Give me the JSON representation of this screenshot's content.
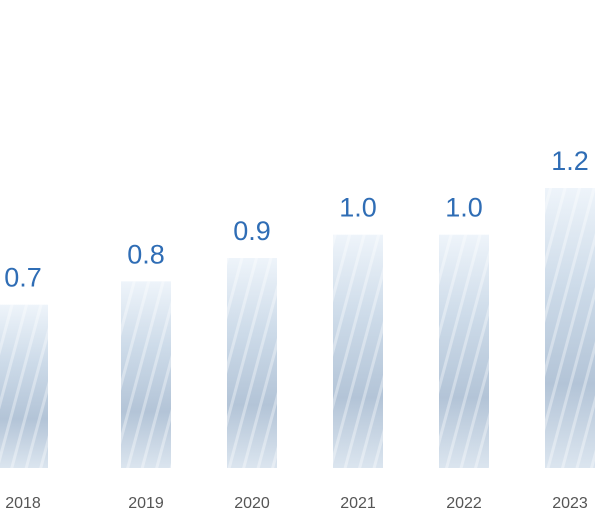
{
  "chart_data": {
    "type": "bar",
    "categories": [
      "2018",
      "2019",
      "2020",
      "2021",
      "2022",
      "2023"
    ],
    "values": [
      0.7,
      0.8,
      0.9,
      1.0,
      1.0,
      1.2
    ],
    "value_labels": [
      "0.7",
      "0.8",
      "0.9",
      "1.0",
      "1.0",
      "1.2"
    ],
    "color": "#2f6db5"
  }
}
